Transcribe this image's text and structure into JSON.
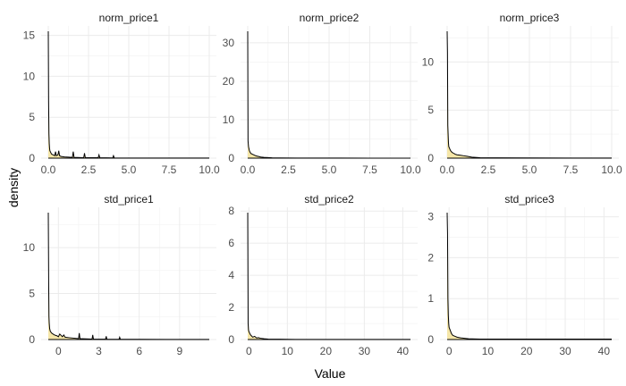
{
  "chart_data": {
    "type": "area",
    "xlabel": "Value",
    "ylabel": "density",
    "grid": true,
    "fill_color": "#f5e6a8",
    "line_color": "#000000",
    "panels": [
      {
        "title": "norm_price1",
        "xlim": [
          0,
          10
        ],
        "ylim": [
          0,
          15.5
        ],
        "xticks": [
          0,
          2.5,
          5,
          7.5,
          10
        ],
        "xtick_labels": [
          "0.0",
          "2.5",
          "5.0",
          "7.5",
          "10.0"
        ],
        "yticks": [
          0,
          5,
          10,
          15
        ],
        "series": [
          {
            "x": [
              0,
              0.02,
              0.04,
              0.06,
              0.08,
              0.1,
              0.15,
              0.2,
              0.3,
              0.4,
              0.45,
              0.5,
              0.6,
              0.65,
              0.7,
              0.8,
              1.0,
              1.5,
              1.55,
              1.6,
              2.2,
              2.25,
              2.3,
              3.1,
              3.15,
              3.2,
              4.0,
              4.05,
              4.1,
              5,
              6,
              7,
              8,
              9,
              10
            ],
            "y": [
              15.5,
              7,
              3,
              1.8,
              1.2,
              0.9,
              0.7,
              0.5,
              0.4,
              0.3,
              0.8,
              0.3,
              0.4,
              0.9,
              0.3,
              0.2,
              0.15,
              0.1,
              0.8,
              0.1,
              0.05,
              0.6,
              0.05,
              0.05,
              0.4,
              0.05,
              0.03,
              0.3,
              0.02,
              0.02,
              0.01,
              0.01,
              0.01,
              0.01,
              0.01
            ]
          }
        ]
      },
      {
        "title": "norm_price2",
        "xlim": [
          0,
          10
        ],
        "ylim": [
          0,
          33
        ],
        "xticks": [
          0,
          2.5,
          5,
          7.5,
          10
        ],
        "xtick_labels": [
          "0.0",
          "2.5",
          "5.0",
          "7.5",
          "10.0"
        ],
        "yticks": [
          0,
          10,
          20,
          30
        ],
        "series": [
          {
            "x": [
              0,
              0.02,
              0.05,
              0.1,
              0.15,
              0.2,
              0.3,
              0.4,
              0.5,
              0.6,
              0.7,
              0.8,
              1.0,
              1.5,
              2,
              3,
              5,
              7.5,
              10
            ],
            "y": [
              33,
              4.5,
              3,
              2,
              1.5,
              1.2,
              1.0,
              0.8,
              0.6,
              0.5,
              0.4,
              0.3,
              0.2,
              0.1,
              0.05,
              0.03,
              0.02,
              0.01,
              0.01
            ]
          }
        ]
      },
      {
        "title": "norm_price3",
        "xlim": [
          0,
          10
        ],
        "ylim": [
          0,
          13.2
        ],
        "xticks": [
          0,
          2.5,
          5,
          7.5,
          10
        ],
        "xtick_labels": [
          "0.0",
          "2.5",
          "5.0",
          "7.5",
          "10.0"
        ],
        "yticks": [
          0,
          5,
          10
        ],
        "series": [
          {
            "x": [
              0,
              0.02,
              0.04,
              0.06,
              0.08,
              0.1,
              0.15,
              0.2,
              0.3,
              0.4,
              0.5,
              0.6,
              0.8,
              1.0,
              1.2,
              1.5,
              2,
              3,
              5,
              7.5,
              10
            ],
            "y": [
              13.2,
              11,
              3.4,
              2.5,
              1.6,
              1.2,
              1.0,
              0.8,
              0.6,
              0.5,
              0.4,
              0.35,
              0.3,
              0.25,
              0.2,
              0.1,
              0.05,
              0.03,
              0.02,
              0.01,
              0.01
            ]
          }
        ]
      },
      {
        "title": "std_price1",
        "xlim": [
          -0.75,
          11.2
        ],
        "ylim": [
          0,
          13.8
        ],
        "xticks": [
          0,
          3,
          6,
          9
        ],
        "xtick_labels": [
          "0",
          "3",
          "6",
          "9"
        ],
        "yticks": [
          0,
          5,
          10
        ],
        "series": [
          {
            "x": [
              -0.75,
              -0.72,
              -0.7,
              -0.68,
              -0.65,
              -0.6,
              -0.5,
              -0.4,
              -0.3,
              -0.1,
              0,
              0.1,
              0.3,
              0.4,
              0.5,
              0.8,
              1.5,
              1.55,
              1.6,
              2.5,
              2.55,
              2.6,
              3.5,
              3.55,
              3.6,
              4.5,
              4.55,
              4.6,
              6,
              8,
              10,
              11.2
            ],
            "y": [
              13.8,
              6,
              2.5,
              1.8,
              1.2,
              0.9,
              0.7,
              0.6,
              0.5,
              0.4,
              0.3,
              0.6,
              0.3,
              0.5,
              0.25,
              0.2,
              0.1,
              0.7,
              0.1,
              0.05,
              0.5,
              0.05,
              0.04,
              0.35,
              0.03,
              0.03,
              0.25,
              0.02,
              0.02,
              0.01,
              0.01,
              0.01
            ]
          }
        ]
      },
      {
        "title": "std_price2",
        "xlim": [
          -0.3,
          42
        ],
        "ylim": [
          0,
          7.9
        ],
        "xticks": [
          0,
          10,
          20,
          30,
          40
        ],
        "xtick_labels": [
          "0",
          "10",
          "20",
          "30",
          "40"
        ],
        "yticks": [
          0,
          2,
          4,
          6,
          8
        ],
        "series": [
          {
            "x": [
              -0.3,
              -0.2,
              -0.1,
              0,
              0.2,
              0.4,
              0.6,
              0.8,
              1,
              1.5,
              2,
              2.5,
              3,
              4,
              5,
              8,
              12,
              20,
              30,
              42
            ],
            "y": [
              7.9,
              1.0,
              0.6,
              0.5,
              0.4,
              0.3,
              0.25,
              0.2,
              0.15,
              0.2,
              0.1,
              0.12,
              0.08,
              0.05,
              0.03,
              0.02,
              0.01,
              0.01,
              0.01,
              0.01
            ]
          }
        ]
      },
      {
        "title": "std_price3",
        "xlim": [
          -0.5,
          42
        ],
        "ylim": [
          0,
          3.1
        ],
        "xticks": [
          0,
          10,
          20,
          30,
          40
        ],
        "xtick_labels": [
          "0",
          "10",
          "20",
          "30",
          "40"
        ],
        "yticks": [
          0,
          1,
          2,
          3
        ],
        "series": [
          {
            "x": [
              -0.5,
              -0.4,
              -0.3,
              -0.2,
              -0.1,
              0,
              0.2,
              0.4,
              0.6,
              0.8,
              1.0,
              1.5,
              2,
              2.5,
              3,
              4,
              5,
              8,
              15,
              25,
              35,
              42
            ],
            "y": [
              3.1,
              2.6,
              1.0,
              0.6,
              0.4,
              0.3,
              0.25,
              0.2,
              0.15,
              0.12,
              0.1,
              0.08,
              0.06,
              0.05,
              0.04,
              0.03,
              0.02,
              0.01,
              0.01,
              0.01,
              0.01,
              0.01
            ]
          }
        ]
      }
    ]
  }
}
